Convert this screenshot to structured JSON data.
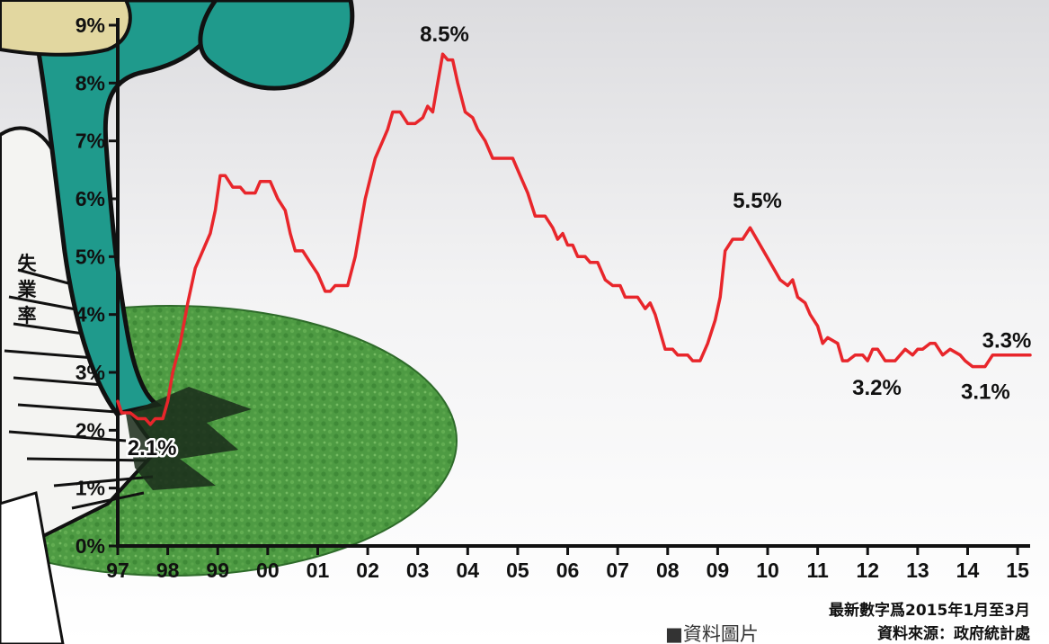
{
  "chart_data": {
    "type": "line",
    "title": "",
    "xlabel": "",
    "ylabel": "失業率",
    "x_tick_labels": [
      "97",
      "98",
      "99",
      "00",
      "01",
      "02",
      "03",
      "04",
      "05",
      "06",
      "07",
      "08",
      "09",
      "10",
      "11",
      "12",
      "13",
      "14",
      "15"
    ],
    "y_tick_labels": [
      "0%",
      "1%",
      "2%",
      "3%",
      "4%",
      "5%",
      "6%",
      "7%",
      "8%",
      "9%"
    ],
    "ylim": [
      0,
      9
    ],
    "xlim": [
      1997.0,
      2015.25
    ],
    "grid": false,
    "series": [
      {
        "name": "",
        "color": "#e8262b",
        "points": [
          [
            1997.0,
            2.5
          ],
          [
            1997.08,
            2.3
          ],
          [
            1997.25,
            2.3
          ],
          [
            1997.4,
            2.2
          ],
          [
            1997.55,
            2.2
          ],
          [
            1997.65,
            2.1
          ],
          [
            1997.75,
            2.2
          ],
          [
            1997.9,
            2.2
          ],
          [
            1998.0,
            2.5
          ],
          [
            1998.1,
            3.0
          ],
          [
            1998.25,
            3.5
          ],
          [
            1998.4,
            4.2
          ],
          [
            1998.55,
            4.8
          ],
          [
            1998.65,
            5.0
          ],
          [
            1998.75,
            5.2
          ],
          [
            1998.85,
            5.4
          ],
          [
            1998.95,
            5.8
          ],
          [
            1999.05,
            6.4
          ],
          [
            1999.15,
            6.4
          ],
          [
            1999.3,
            6.2
          ],
          [
            1999.45,
            6.2
          ],
          [
            1999.55,
            6.1
          ],
          [
            1999.75,
            6.1
          ],
          [
            1999.85,
            6.3
          ],
          [
            2000.05,
            6.3
          ],
          [
            2000.2,
            6.0
          ],
          [
            2000.35,
            5.8
          ],
          [
            2000.45,
            5.4
          ],
          [
            2000.55,
            5.1
          ],
          [
            2000.7,
            5.1
          ],
          [
            2000.85,
            4.9
          ],
          [
            2001.0,
            4.7
          ],
          [
            2001.15,
            4.4
          ],
          [
            2001.25,
            4.4
          ],
          [
            2001.35,
            4.5
          ],
          [
            2001.6,
            4.5
          ],
          [
            2001.75,
            5.0
          ],
          [
            2001.85,
            5.5
          ],
          [
            2001.95,
            6.0
          ],
          [
            2002.15,
            6.7
          ],
          [
            2002.3,
            7.0
          ],
          [
            2002.4,
            7.2
          ],
          [
            2002.5,
            7.5
          ],
          [
            2002.65,
            7.5
          ],
          [
            2002.8,
            7.3
          ],
          [
            2002.95,
            7.3
          ],
          [
            2003.1,
            7.4
          ],
          [
            2003.2,
            7.6
          ],
          [
            2003.3,
            7.5
          ],
          [
            2003.4,
            8.0
          ],
          [
            2003.5,
            8.5
          ],
          [
            2003.6,
            8.4
          ],
          [
            2003.7,
            8.4
          ],
          [
            2003.8,
            8.0
          ],
          [
            2003.95,
            7.5
          ],
          [
            2004.1,
            7.4
          ],
          [
            2004.2,
            7.2
          ],
          [
            2004.35,
            7.0
          ],
          [
            2004.5,
            6.7
          ],
          [
            2004.6,
            6.7
          ],
          [
            2004.75,
            6.7
          ],
          [
            2004.9,
            6.7
          ],
          [
            2005.05,
            6.4
          ],
          [
            2005.2,
            6.1
          ],
          [
            2005.35,
            5.7
          ],
          [
            2005.55,
            5.7
          ],
          [
            2005.7,
            5.5
          ],
          [
            2005.8,
            5.3
          ],
          [
            2005.9,
            5.4
          ],
          [
            2006.0,
            5.2
          ],
          [
            2006.1,
            5.2
          ],
          [
            2006.2,
            5.0
          ],
          [
            2006.35,
            5.0
          ],
          [
            2006.45,
            4.9
          ],
          [
            2006.6,
            4.9
          ],
          [
            2006.75,
            4.6
          ],
          [
            2006.9,
            4.5
          ],
          [
            2007.05,
            4.5
          ],
          [
            2007.15,
            4.3
          ],
          [
            2007.4,
            4.3
          ],
          [
            2007.55,
            4.1
          ],
          [
            2007.65,
            4.2
          ],
          [
            2007.75,
            4.0
          ],
          [
            2007.85,
            3.7
          ],
          [
            2007.95,
            3.4
          ],
          [
            2008.1,
            3.4
          ],
          [
            2008.2,
            3.3
          ],
          [
            2008.4,
            3.3
          ],
          [
            2008.5,
            3.2
          ],
          [
            2008.65,
            3.2
          ],
          [
            2008.8,
            3.5
          ],
          [
            2008.95,
            3.9
          ],
          [
            2009.05,
            4.3
          ],
          [
            2009.15,
            5.1
          ],
          [
            2009.3,
            5.3
          ],
          [
            2009.5,
            5.3
          ],
          [
            2009.65,
            5.5
          ],
          [
            2009.85,
            5.2
          ],
          [
            2010.05,
            4.9
          ],
          [
            2010.25,
            4.6
          ],
          [
            2010.4,
            4.5
          ],
          [
            2010.5,
            4.6
          ],
          [
            2010.6,
            4.3
          ],
          [
            2010.75,
            4.2
          ],
          [
            2010.85,
            4.0
          ],
          [
            2011.0,
            3.8
          ],
          [
            2011.1,
            3.5
          ],
          [
            2011.2,
            3.6
          ],
          [
            2011.4,
            3.5
          ],
          [
            2011.5,
            3.2
          ],
          [
            2011.6,
            3.2
          ],
          [
            2011.75,
            3.3
          ],
          [
            2011.9,
            3.3
          ],
          [
            2012.0,
            3.2
          ],
          [
            2012.1,
            3.4
          ],
          [
            2012.2,
            3.4
          ],
          [
            2012.35,
            3.2
          ],
          [
            2012.55,
            3.2
          ],
          [
            2012.75,
            3.4
          ],
          [
            2012.9,
            3.3
          ],
          [
            2013.0,
            3.4
          ],
          [
            2013.1,
            3.4
          ],
          [
            2013.25,
            3.5
          ],
          [
            2013.35,
            3.5
          ],
          [
            2013.5,
            3.3
          ],
          [
            2013.65,
            3.4
          ],
          [
            2013.85,
            3.3
          ],
          [
            2013.95,
            3.2
          ],
          [
            2014.1,
            3.1
          ],
          [
            2014.35,
            3.1
          ],
          [
            2014.5,
            3.3
          ],
          [
            2014.75,
            3.3
          ],
          [
            2015.0,
            3.3
          ],
          [
            2015.25,
            3.3
          ]
        ]
      }
    ],
    "annotations": [
      {
        "text": "2.1%",
        "x": 1997.65,
        "y": 2.1
      },
      {
        "text": "8.5%",
        "x": 2003.5,
        "y": 8.5
      },
      {
        "text": "5.5%",
        "x": 2009.65,
        "y": 5.5
      },
      {
        "text": "3.2%",
        "x": 2012.4,
        "y": 3.2
      },
      {
        "text": "3.1%",
        "x": 2014.25,
        "y": 3.1
      },
      {
        "text": "3.3%",
        "x": 2015.25,
        "y": 3.3
      }
    ],
    "notes": [
      "最新數字爲2015年1月至3月",
      "資料來源：政府統計處"
    ]
  },
  "credit": "■資料圖片",
  "colors": {
    "line": "#e8262b",
    "axis": "#111111",
    "grass": "#4e9b43",
    "figure_teal": "#1f9a8c",
    "background_top": "#e8e8ea"
  }
}
